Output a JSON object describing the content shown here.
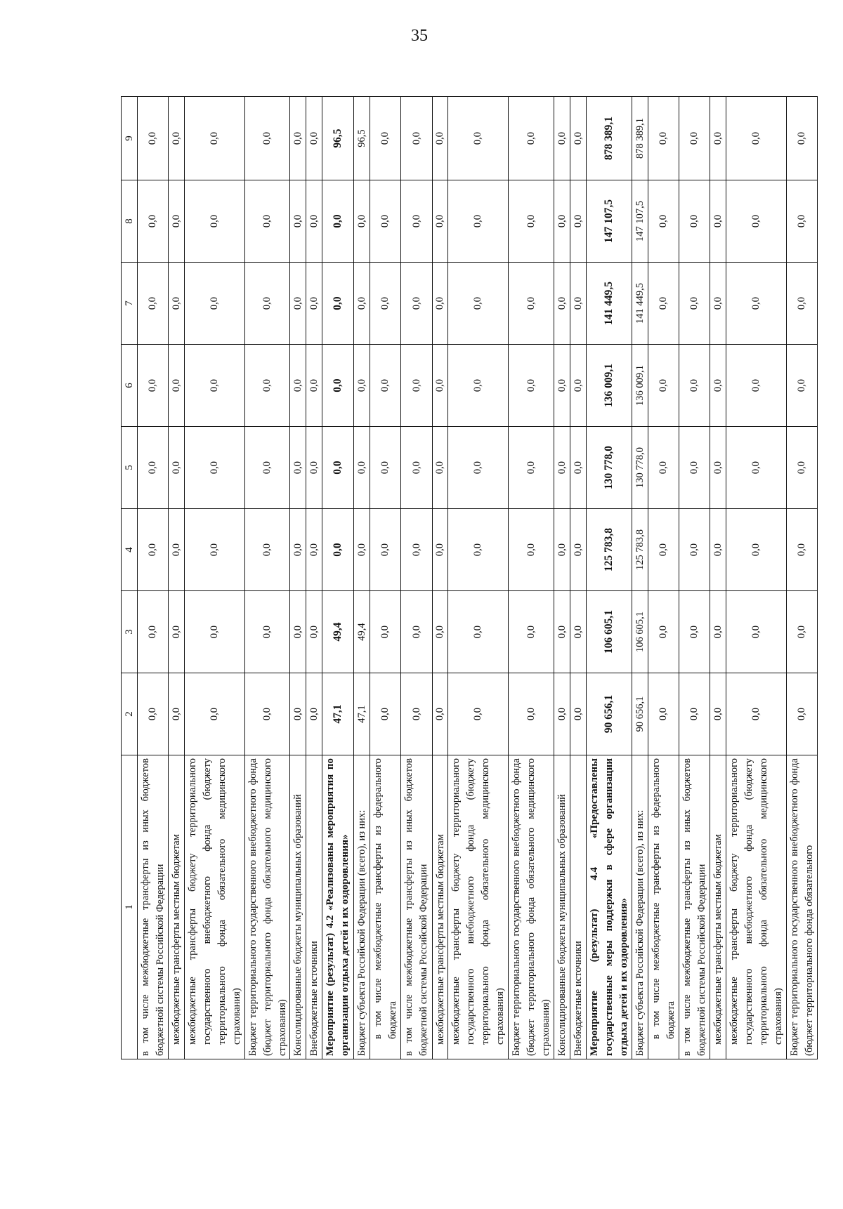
{
  "page_number": "35",
  "table": {
    "columns": [
      "1",
      "2",
      "3",
      "4",
      "5",
      "6",
      "7",
      "8",
      "9"
    ],
    "rows": [
      {
        "label": "в том числе межбюджетные трансферты из иных бюджетов бюджетной системы Российской Федерации",
        "bold": false,
        "indent": 0,
        "values": [
          "0,0",
          "0,0",
          "0,0",
          "0,0",
          "0,0",
          "0,0",
          "0,0",
          "0,0"
        ]
      },
      {
        "label": "межбюджетные трансферты местным бюджетам",
        "bold": false,
        "indent": 1,
        "values": [
          "0,0",
          "0,0",
          "0,0",
          "0,0",
          "0,0",
          "0,0",
          "0,0",
          "0,0"
        ]
      },
      {
        "label": "межбюджетные трансферты бюджету территориального государственного внебюджетного фонда (бюджету территориального фонда обязательного медицинского страхования)",
        "bold": false,
        "indent": 1,
        "values": [
          "0,0",
          "0,0",
          "0,0",
          "0,0",
          "0,0",
          "0,0",
          "0,0",
          "0,0"
        ]
      },
      {
        "label": "Бюджет территориального государственного внебюджетного фонда (бюджет территориального фонда обязательного медицинского страхования)",
        "bold": false,
        "indent": 0,
        "values": [
          "0,0",
          "0,0",
          "0,0",
          "0,0",
          "0,0",
          "0,0",
          "0,0",
          "0,0"
        ]
      },
      {
        "label": "Консолидированные бюджеты муниципальных образований",
        "bold": false,
        "indent": 0,
        "values": [
          "0,0",
          "0,0",
          "0,0",
          "0,0",
          "0,0",
          "0,0",
          "0,0",
          "0,0"
        ]
      },
      {
        "label": "Внебюджетные источники",
        "bold": false,
        "indent": 0,
        "values": [
          "0,0",
          "0,0",
          "0,0",
          "0,0",
          "0,0",
          "0,0",
          "0,0",
          "0,0"
        ]
      },
      {
        "label": "Мероприятие (результат) 4.2 «Реализованы мероприятия по организации отдыха детей и их оздоровления»",
        "bold": true,
        "indent": 0,
        "values": [
          "47,1",
          "49,4",
          "0,0",
          "0,0",
          "0,0",
          "0,0",
          "0,0",
          "96,5"
        ]
      },
      {
        "label": "Бюджет субъекта Российской Федерации (всего), из них:",
        "bold": false,
        "indent": 0,
        "values": [
          "47,1",
          "49,4",
          "0,0",
          "0,0",
          "0,0",
          "0,0",
          "0,0",
          "96,5"
        ]
      },
      {
        "label": "в том числе межбюджетные трансферты из федерального бюджета",
        "bold": false,
        "indent": 2,
        "values": [
          "0,0",
          "0,0",
          "0,0",
          "0,0",
          "0,0",
          "0,0",
          "0,0",
          "0,0"
        ]
      },
      {
        "label": "в том числе межбюджетные трансферты из иных бюджетов бюджетной системы Российской Федерации",
        "bold": false,
        "indent": 0,
        "values": [
          "0,0",
          "0,0",
          "0,0",
          "0,0",
          "0,0",
          "0,0",
          "0,0",
          "0,0"
        ]
      },
      {
        "label": "межбюджетные трансферты местным бюджетам",
        "bold": false,
        "indent": 1,
        "values": [
          "0,0",
          "0,0",
          "0,0",
          "0,0",
          "0,0",
          "0,0",
          "0,0",
          "0,0"
        ]
      },
      {
        "label": "межбюджетные трансферты бюджету территориального государственного внебюджетного фонда (бюджету территориального фонда обязательного медицинского страхования)",
        "bold": false,
        "indent": 1,
        "values": [
          "0,0",
          "0,0",
          "0,0",
          "0,0",
          "0,0",
          "0,0",
          "0,0",
          "0,0"
        ]
      },
      {
        "label": "Бюджет территориального государственного внебюджетного фонда (бюджет территориального фонда обязательного медицинского страхования)",
        "bold": false,
        "indent": 0,
        "values": [
          "0,0",
          "0,0",
          "0,0",
          "0,0",
          "0,0",
          "0,0",
          "0,0",
          "0,0"
        ]
      },
      {
        "label": "Консолидированные бюджеты муниципальных образований",
        "bold": false,
        "indent": 0,
        "values": [
          "0,0",
          "0,0",
          "0,0",
          "0,0",
          "0,0",
          "0,0",
          "0,0",
          "0,0"
        ]
      },
      {
        "label": "Внебюджетные источники",
        "bold": false,
        "indent": 0,
        "values": [
          "0,0",
          "0,0",
          "0,0",
          "0,0",
          "0,0",
          "0,0",
          "0,0",
          "0,0"
        ]
      },
      {
        "label": "Мероприятие (результат) 4.4 «Предоставлены государственные меры поддержки в сфере организации отдыха детей и их оздоровления»",
        "bold": true,
        "indent": 0,
        "values": [
          "90 656,1",
          "106 605,1",
          "125 783,8",
          "130 778,0",
          "136 009,1",
          "141 449,5",
          "147 107,5",
          "878 389,1"
        ]
      },
      {
        "label": "Бюджет субъекта Российской Федерации (всего), из них:",
        "bold": false,
        "indent": 0,
        "values": [
          "90 656,1",
          "106 605,1",
          "125 783,8",
          "130 778,0",
          "136 009,1",
          "141 449,5",
          "147 107,5",
          "878 389,1"
        ]
      },
      {
        "label": "в том числе межбюджетные трансферты из федерального бюджета",
        "bold": false,
        "indent": 2,
        "values": [
          "0,0",
          "0,0",
          "0,0",
          "0,0",
          "0,0",
          "0,0",
          "0,0",
          "0,0"
        ]
      },
      {
        "label": "в том числе межбюджетные трансферты из иных бюджетов бюджетной системы Российской Федерации",
        "bold": false,
        "indent": 0,
        "values": [
          "0,0",
          "0,0",
          "0,0",
          "0,0",
          "0,0",
          "0,0",
          "0,0",
          "0,0"
        ]
      },
      {
        "label": "межбюджетные трансферты местным бюджетам",
        "bold": false,
        "indent": 1,
        "values": [
          "0,0",
          "0,0",
          "0,0",
          "0,0",
          "0,0",
          "0,0",
          "0,0",
          "0,0"
        ]
      },
      {
        "label": "межбюджетные трансферты бюджету территориального государственного внебюджетного фонда (бюджету территориального фонда обязательного медицинского страхования)",
        "bold": false,
        "indent": 1,
        "values": [
          "0,0",
          "0,0",
          "0,0",
          "0,0",
          "0,0",
          "0,0",
          "0,0",
          "0,0"
        ]
      },
      {
        "label": "Бюджет территориального государственного внебюджетного фонда (бюджет территориального фонда обязательного",
        "bold": false,
        "indent": 0,
        "values": [
          "0,0",
          "0,0",
          "0,0",
          "0,0",
          "0,0",
          "0,0",
          "0,0",
          "0,0"
        ]
      }
    ]
  }
}
